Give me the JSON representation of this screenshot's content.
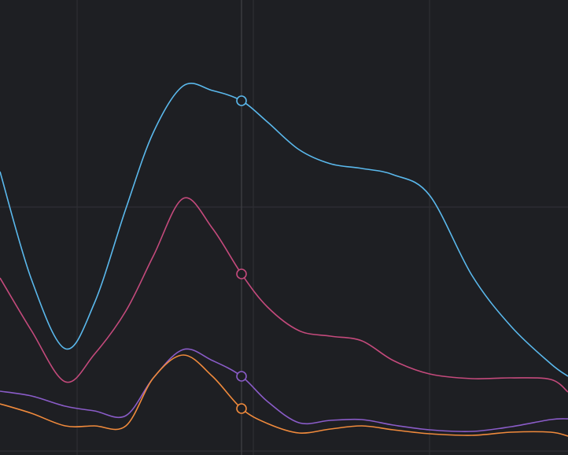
{
  "chart_data": {
    "type": "line",
    "x": [
      0,
      40,
      83,
      120,
      160,
      195,
      233,
      270,
      307,
      340,
      380,
      420,
      460,
      500,
      546,
      600,
      650,
      700,
      722
    ],
    "series": [
      {
        "color": "#5ab8ec",
        "values": [
          360,
          223,
          135,
          193,
          313,
          410,
          469,
          463,
          450,
          423,
          388,
          370,
          364,
          356,
          330,
          228,
          163,
          116,
          100
        ]
      },
      {
        "color": "#c44a7c",
        "values": [
          225,
          158,
          93,
          128,
          183,
          253,
          326,
          288,
          230,
          188,
          158,
          151,
          145,
          120,
          103,
          97,
          98,
          96,
          80
        ]
      },
      {
        "color": "#8a5cc8",
        "values": [
          81,
          75,
          62,
          56,
          50,
          98,
          134,
          120,
          100,
          68,
          41,
          44,
          45,
          38,
          32,
          30,
          36,
          45,
          46
        ]
      },
      {
        "color": "#f08a3c",
        "values": [
          65,
          53,
          37,
          37,
          37,
          98,
          127,
          100,
          59,
          40,
          28,
          33,
          37,
          32,
          27,
          25,
          29,
          29,
          24
        ]
      }
    ],
    "xlim": [
      0,
      722
    ],
    "ylim": [
      0,
      578
    ],
    "xticks": [
      98,
      322,
      546
    ],
    "yticks": [
      5,
      315
    ],
    "grid": true,
    "hover_x": 307
  }
}
